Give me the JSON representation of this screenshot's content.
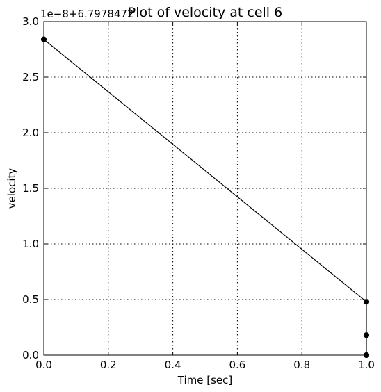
{
  "chart_data": {
    "type": "line",
    "title": "Plot of velocity at cell 6",
    "xlabel": "Time [sec]",
    "ylabel": "velocity",
    "y_offset_label": "1e−8+6.7978472",
    "xlim": [
      0.0,
      1.0
    ],
    "ylim": [
      0.0,
      3.0
    ],
    "x_ticks": [
      0.0,
      0.2,
      0.4,
      0.6,
      0.8,
      1.0
    ],
    "x_tick_labels": [
      "0.0",
      "0.2",
      "0.4",
      "0.6",
      "0.8",
      "1.0"
    ],
    "y_ticks": [
      0.0,
      0.5,
      1.0,
      1.5,
      2.0,
      2.5,
      3.0
    ],
    "y_tick_labels": [
      "0.0",
      "0.5",
      "1.0",
      "1.5",
      "2.0",
      "2.5",
      "3.0"
    ],
    "grid": true,
    "series": [
      {
        "x": [
          0.0,
          1.0,
          1.0,
          1.0
        ],
        "y": [
          2.84,
          0.48,
          0.18,
          0.0
        ],
        "line_color": "#000000",
        "marker": "circle",
        "marker_color": "#000000"
      }
    ]
  }
}
